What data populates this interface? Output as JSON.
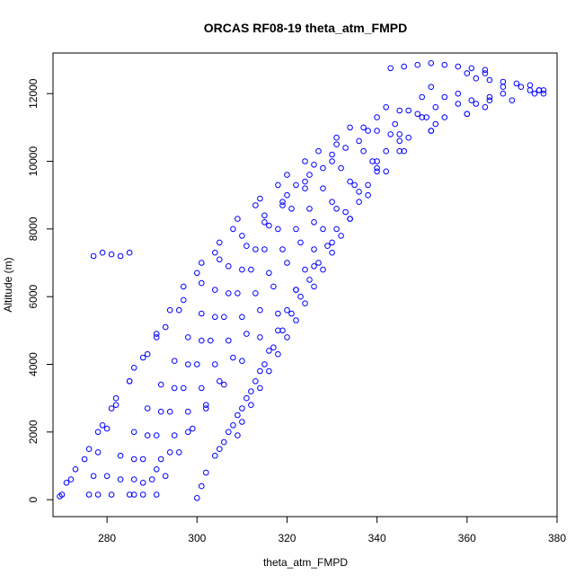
{
  "chart_data": {
    "type": "scatter",
    "title": "ORCAS RF08-19 theta_atm_FMPD",
    "xlabel": "theta_atm_FMPD",
    "ylabel": "Altitude (m)",
    "xlim": [
      268,
      380
    ],
    "ylim": [
      -500,
      13200
    ],
    "xticks": [
      280,
      300,
      320,
      340,
      360,
      380
    ],
    "yticks": [
      0,
      2000,
      4000,
      6000,
      8000,
      10000,
      12000
    ],
    "grid": false,
    "legend": "none",
    "marker": "open-circle",
    "color": "#0000ff",
    "series": [
      {
        "x": [
          269.5,
          271,
          273,
          276,
          279,
          282,
          286,
          291,
          296,
          301,
          305,
          310,
          315,
          320,
          325,
          330,
          338,
          347,
          358,
          372
        ],
        "y": [
          100,
          500,
          900,
          1500,
          2200,
          3000,
          3900,
          4800,
          5600,
          6400,
          7100,
          7800,
          8400,
          9000,
          9600,
          10200,
          10900,
          11500,
          12000,
          12200
        ]
      },
      {
        "x": [
          270,
          272,
          275,
          278,
          281,
          285,
          289,
          293,
          297,
          300,
          304,
          308,
          313,
          318,
          324,
          331,
          340,
          350,
          360
        ],
        "y": [
          150,
          600,
          1200,
          2000,
          2700,
          3500,
          4300,
          5100,
          5900,
          6700,
          7300,
          8000,
          8700,
          9300,
          10000,
          10700,
          11300,
          11900,
          12600
        ]
      },
      {
        "x": [
          276,
          277,
          278,
          280,
          282,
          285,
          288,
          291,
          294,
          297,
          301,
          305,
          309,
          314,
          320,
          327,
          334,
          342,
          352,
          364
        ],
        "y": [
          150,
          700,
          1400,
          2100,
          2800,
          3500,
          4200,
          4900,
          5600,
          6300,
          7000,
          7600,
          8300,
          8900,
          9600,
          10300,
          11000,
          11600,
          12200,
          12600
        ]
      },
      {
        "x": [
          278,
          280,
          283,
          286,
          289,
          292,
          295,
          298,
          301,
          304,
          307,
          311,
          315,
          319,
          324,
          330,
          336,
          344,
          353,
          365,
          376
        ],
        "y": [
          150,
          700,
          1300,
          2000,
          2700,
          3400,
          4100,
          4800,
          5500,
          6200,
          6900,
          7500,
          8200,
          8800,
          9400,
          10000,
          10600,
          11100,
          11600,
          11900,
          12100
        ]
      },
      {
        "x": [
          281,
          283,
          286,
          289,
          292,
          295,
          298,
          301,
          304,
          307,
          310,
          313,
          316,
          319,
          322,
          326,
          331,
          337,
          345,
          355,
          368
        ],
        "y": [
          150,
          600,
          1200,
          1900,
          2600,
          3300,
          4000,
          4700,
          5400,
          6100,
          6800,
          7400,
          8100,
          8700,
          9300,
          9900,
          10500,
          11000,
          11500,
          11900,
          12200
        ]
      },
      {
        "x": [
          285,
          286,
          288,
          291,
          294,
          297,
          300,
          303,
          306,
          309,
          312,
          315,
          318,
          321,
          324,
          328,
          333,
          340,
          349,
          361,
          374
        ],
        "y": [
          150,
          600,
          1200,
          1900,
          2600,
          3300,
          4000,
          4700,
          5400,
          6100,
          6800,
          7400,
          8000,
          8600,
          9200,
          9800,
          10400,
          10900,
          11400,
          11800,
          12100
        ]
      },
      {
        "x": [
          288,
          290,
          292,
          295,
          298,
          301,
          304,
          307,
          310,
          313,
          316,
          319,
          322,
          325,
          328,
          332,
          337,
          343,
          351,
          362,
          375
        ],
        "y": [
          150,
          600,
          1200,
          1900,
          2600,
          3300,
          4000,
          4700,
          5400,
          6100,
          6700,
          7400,
          8000,
          8600,
          9200,
          9800,
          10300,
          10800,
          11300,
          11700,
          12000
        ]
      },
      {
        "x": [
          291,
          293,
          296,
          299,
          302,
          305,
          308,
          311,
          314,
          317,
          320,
          323,
          326,
          330,
          334,
          339,
          345,
          353,
          364,
          377
        ],
        "y": [
          150,
          700,
          1400,
          2100,
          2800,
          3500,
          4200,
          4900,
          5600,
          6300,
          7000,
          7600,
          8200,
          8800,
          9400,
          10000,
          10600,
          11100,
          11600,
          12000
        ]
      },
      {
        "x": [
          300,
          301,
          302,
          304,
          306,
          308,
          310,
          312,
          314,
          316,
          318,
          320,
          322,
          324,
          326,
          328,
          331,
          335,
          340,
          347,
          355,
          365,
          376
        ],
        "y": [
          50,
          400,
          800,
          1300,
          1700,
          2200,
          2700,
          3200,
          3800,
          4400,
          5000,
          5600,
          6200,
          6800,
          7400,
          8000,
          8600,
          9300,
          10000,
          10700,
          11300,
          11800,
          12100
        ]
      },
      {
        "x": [
          309,
          310,
          312,
          314,
          316,
          318,
          320,
          322,
          324,
          326,
          328,
          330,
          332,
          334,
          336,
          338,
          340,
          342,
          345,
          350,
          358,
          368
        ],
        "y": [
          1900,
          2300,
          2800,
          3300,
          3800,
          4300,
          4800,
          5300,
          5800,
          6300,
          6800,
          7300,
          7800,
          8300,
          8800,
          9300,
          9800,
          10300,
          10800,
          11300,
          11700,
          12000
        ]
      },
      {
        "x": [
          286,
          288,
          291,
          294,
          298,
          302,
          306,
          310,
          314,
          318,
          322,
          326,
          330,
          334,
          338,
          342,
          346,
          352,
          360,
          370
        ],
        "y": [
          150,
          500,
          900,
          1400,
          2000,
          2700,
          3400,
          4100,
          4800,
          5500,
          6200,
          6900,
          7600,
          8300,
          9000,
          9700,
          10300,
          10900,
          11400,
          11800
        ]
      },
      {
        "x": [
          305,
          307,
          309,
          311,
          313,
          315,
          317,
          319,
          321,
          323,
          325,
          327,
          329,
          331,
          333,
          336,
          340,
          345,
          352,
          360
        ],
        "y": [
          1500,
          2000,
          2500,
          3000,
          3500,
          4000,
          4500,
          5000,
          5500,
          6000,
          6500,
          7000,
          7500,
          8000,
          8500,
          9100,
          9700,
          10300,
          10900,
          11400
        ]
      },
      {
        "x": [
          343,
          346,
          349,
          352,
          355,
          358,
          361,
          364
        ],
        "y": [
          12750,
          12800,
          12850,
          12900,
          12850,
          12800,
          12750,
          12700
        ]
      },
      {
        "x": [
          362,
          365,
          368,
          371,
          374,
          377
        ],
        "y": [
          12450,
          12400,
          12350,
          12300,
          12250,
          12100
        ]
      },
      {
        "x": [
          277,
          279,
          281,
          283,
          285
        ],
        "y": [
          7200,
          7300,
          7250,
          7200,
          7300
        ]
      }
    ]
  }
}
